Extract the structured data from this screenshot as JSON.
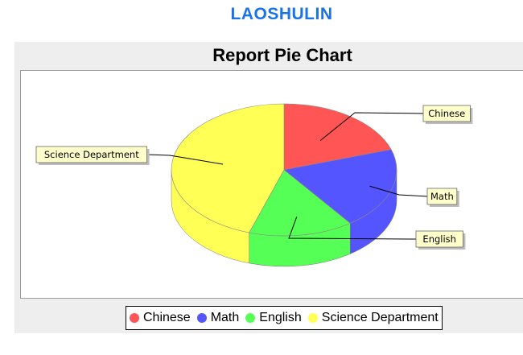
{
  "page": {
    "site_title": "LAOSHULIN"
  },
  "chart_data": {
    "type": "pie",
    "title": "Report Pie Chart",
    "three_d": true,
    "categories": [
      "Chinese",
      "Math",
      "English",
      "Science Department"
    ],
    "values": [
      20,
      20,
      15,
      45
    ],
    "colors": [
      "#ff5555",
      "#5555ff",
      "#55ff55",
      "#ffff55"
    ],
    "legend_position": "bottom"
  }
}
